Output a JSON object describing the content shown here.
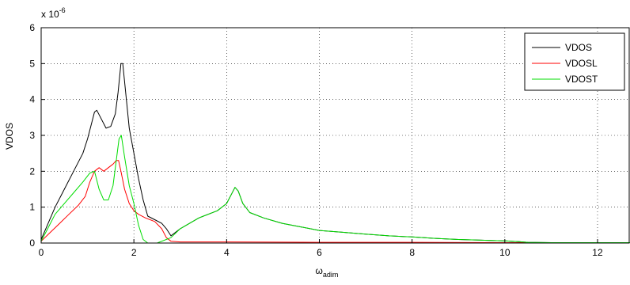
{
  "chart_data": {
    "type": "line",
    "title": "",
    "xlabel": "ω",
    "xlabel_sub": "adim",
    "ylabel": "VDOS",
    "y_multiplier": "x 10",
    "y_multiplier_exp": "-6",
    "xlim": [
      0,
      12.7
    ],
    "ylim": [
      0,
      6
    ],
    "xticks": [
      0,
      2,
      4,
      6,
      8,
      10,
      12
    ],
    "yticks": [
      0,
      1,
      2,
      3,
      4,
      5,
      6
    ],
    "grid": true,
    "legend_position": "top-right",
    "series": [
      {
        "name": "VDOS",
        "color": "#000000",
        "x": [
          0,
          0.1,
          0.3,
          0.5,
          0.7,
          0.9,
          1.0,
          1.08,
          1.15,
          1.2,
          1.28,
          1.4,
          1.5,
          1.6,
          1.66,
          1.72,
          1.76,
          1.8,
          1.9,
          2.0,
          2.1,
          2.2,
          2.3,
          2.45,
          2.6,
          2.7,
          2.8,
          3.0,
          3.4,
          3.8,
          4.0,
          4.1,
          4.18,
          4.25,
          4.35,
          4.5,
          4.8,
          5.2,
          5.6,
          6.0,
          6.5,
          7.0,
          7.5,
          8.0,
          8.5,
          9.0,
          9.5,
          10.0,
          10.3,
          10.5,
          11.0,
          12.0,
          12.7
        ],
        "y": [
          0.1,
          0.4,
          1.0,
          1.5,
          2.0,
          2.5,
          2.9,
          3.3,
          3.65,
          3.7,
          3.5,
          3.2,
          3.25,
          3.6,
          4.2,
          5.0,
          5.0,
          4.5,
          3.2,
          2.5,
          1.8,
          1.2,
          0.75,
          0.65,
          0.55,
          0.4,
          0.2,
          0.4,
          0.7,
          0.9,
          1.1,
          1.35,
          1.55,
          1.45,
          1.1,
          0.85,
          0.7,
          0.55,
          0.45,
          0.35,
          0.3,
          0.25,
          0.2,
          0.17,
          0.13,
          0.1,
          0.08,
          0.06,
          0.04,
          0.02,
          0.01,
          0.01,
          0.01
        ]
      },
      {
        "name": "VDOSL",
        "color": "#ff0000",
        "x": [
          0,
          0.2,
          0.4,
          0.6,
          0.8,
          0.95,
          1.05,
          1.15,
          1.25,
          1.35,
          1.45,
          1.55,
          1.62,
          1.67,
          1.72,
          1.8,
          1.9,
          2.0,
          2.1,
          2.25,
          2.45,
          2.6,
          2.7,
          2.8,
          3.0,
          4.0,
          6.0,
          8.0,
          10.0,
          12.7
        ],
        "y": [
          0.05,
          0.3,
          0.55,
          0.8,
          1.05,
          1.3,
          1.7,
          2.0,
          2.1,
          2.0,
          2.1,
          2.2,
          2.3,
          2.3,
          2.0,
          1.5,
          1.1,
          0.9,
          0.8,
          0.7,
          0.6,
          0.4,
          0.15,
          0.05,
          0.03,
          0.03,
          0.02,
          0.02,
          0.01,
          0.01
        ]
      },
      {
        "name": "VDOST",
        "color": "#00dd00",
        "x": [
          0,
          0.1,
          0.3,
          0.5,
          0.7,
          0.9,
          1.05,
          1.15,
          1.25,
          1.35,
          1.45,
          1.55,
          1.62,
          1.68,
          1.73,
          1.8,
          1.9,
          2.0,
          2.1,
          2.2,
          2.3,
          2.5,
          2.8,
          3.0,
          3.4,
          3.8,
          4.0,
          4.1,
          4.18,
          4.25,
          4.35,
          4.5,
          4.8,
          5.2,
          5.6,
          6.0,
          6.5,
          7.0,
          7.5,
          8.0,
          8.5,
          9.0,
          9.5,
          10.0,
          10.3,
          10.5,
          11.0,
          12.0,
          12.7
        ],
        "y": [
          0.05,
          0.3,
          0.8,
          1.1,
          1.4,
          1.7,
          1.95,
          2.0,
          1.5,
          1.2,
          1.2,
          1.6,
          2.3,
          2.9,
          3.0,
          2.4,
          1.6,
          1.1,
          0.5,
          0.1,
          0.0,
          0.0,
          0.15,
          0.4,
          0.7,
          0.9,
          1.1,
          1.35,
          1.55,
          1.45,
          1.1,
          0.85,
          0.7,
          0.55,
          0.45,
          0.35,
          0.3,
          0.25,
          0.2,
          0.17,
          0.13,
          0.1,
          0.08,
          0.06,
          0.04,
          0.02,
          0.01,
          0.01,
          0.01
        ]
      }
    ]
  }
}
